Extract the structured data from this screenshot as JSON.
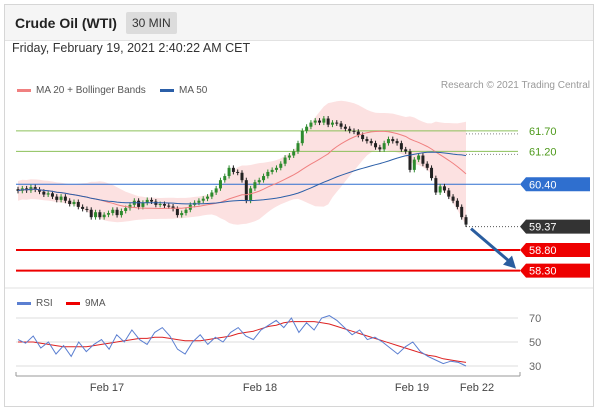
{
  "header": {
    "title": "Crude Oil (WTI)",
    "timeframe": "30 MIN"
  },
  "datetime": "Friday, February 19, 2021 2:40:22 AM CET",
  "legend": {
    "ma20_label": "MA 20 + Bollinger Bands",
    "ma50_label": "MA 50",
    "credit": "Research © 2021 Trading Central",
    "rsi_label": "RSI",
    "ma9_label": "9MA"
  },
  "colors": {
    "ma20": "#f08080",
    "bands": "#fbdada",
    "ma50": "#2b5fa8",
    "pivot": "#2f6fcf",
    "support": "#ee0000",
    "resistance": "#8cc05a",
    "resistance_text": "#4e9a1c",
    "arrow": "#2a5d9f",
    "last_price": "#333333",
    "rsi": "#5b7fd1"
  },
  "chart_data": [
    {
      "type": "candlestick",
      "title": "Crude Oil (WTI)",
      "ylim": [
        57.95,
        62.45
      ],
      "x_tick_labels": [
        "Feb 17",
        "Feb 18",
        "Feb 19",
        "Feb 22"
      ],
      "close": [
        60.24,
        60.3,
        60.25,
        60.33,
        60.27,
        60.22,
        60.15,
        60.18,
        60.1,
        60.02,
        60.1,
        60.0,
        59.92,
        59.97,
        59.85,
        59.8,
        59.78,
        59.6,
        59.72,
        59.6,
        59.66,
        59.7,
        59.78,
        59.65,
        59.75,
        59.82,
        59.9,
        60.0,
        59.85,
        59.95,
        60.02,
        59.98,
        59.9,
        59.92,
        59.88,
        59.86,
        59.8,
        59.65,
        59.7,
        59.78,
        59.9,
        59.95,
        60.0,
        60.05,
        60.1,
        60.2,
        60.3,
        60.5,
        60.6,
        60.8,
        60.7,
        60.68,
        60.5,
        60.0,
        60.3,
        60.45,
        60.5,
        60.6,
        60.7,
        60.75,
        60.8,
        60.9,
        61.05,
        61.1,
        61.2,
        61.4,
        61.7,
        61.8,
        61.9,
        61.95,
        61.9,
        62.0,
        61.85,
        61.9,
        61.88,
        61.8,
        61.75,
        61.7,
        61.68,
        61.6,
        61.5,
        61.45,
        61.4,
        61.3,
        61.25,
        61.4,
        61.5,
        61.45,
        61.4,
        61.25,
        61.2,
        60.75,
        61.0,
        61.1,
        60.9,
        60.8,
        60.55,
        60.2,
        60.35,
        60.25,
        60.1,
        60.0,
        59.85,
        59.6,
        59.42
      ],
      "series": [
        {
          "name": "MA 20",
          "close_ref": true
        },
        {
          "name": "MA 50",
          "close_ref": true
        }
      ],
      "levels": [
        {
          "label": "61.70",
          "value": 61.7,
          "kind": "resistance"
        },
        {
          "label": "61.20",
          "value": 61.2,
          "kind": "resistance"
        },
        {
          "label": "60.40",
          "value": 60.4,
          "kind": "pivot"
        },
        {
          "label": "59.37",
          "value": 59.37,
          "kind": "last"
        },
        {
          "label": "58.80",
          "value": 58.8,
          "kind": "support"
        },
        {
          "label": "58.30",
          "value": 58.3,
          "kind": "support"
        }
      ],
      "forecast_arrow": {
        "from": 59.37,
        "to": 58.3,
        "direction": "down"
      }
    },
    {
      "type": "line",
      "title": "RSI",
      "ylim": [
        25,
        75
      ],
      "y_tick_labels": [
        "70",
        "50",
        "30"
      ],
      "y_ticks": [
        70,
        50,
        30
      ],
      "series": [
        {
          "name": "RSI",
          "values": [
            52,
            49,
            55,
            45,
            50,
            40,
            47,
            38,
            50,
            42,
            48,
            52,
            44,
            56,
            50,
            60,
            52,
            48,
            58,
            62,
            55,
            44,
            40,
            50,
            56,
            48,
            54,
            50,
            58,
            62,
            55,
            52,
            60,
            64,
            68,
            62,
            70,
            58,
            66,
            60,
            70,
            72,
            68,
            62,
            56,
            60,
            52,
            54,
            50,
            45,
            40,
            46,
            50,
            42,
            38,
            35,
            32,
            34,
            33,
            30
          ]
        },
        {
          "name": "9MA",
          "values": [
            50,
            50,
            50,
            49,
            48,
            47,
            46,
            46,
            46,
            46,
            47,
            48,
            49,
            50,
            51,
            52,
            53,
            53,
            54,
            54,
            53,
            52,
            51,
            51,
            51,
            52,
            53,
            54,
            55,
            57,
            58,
            59,
            61,
            63,
            64,
            66,
            67,
            67,
            67,
            67,
            66,
            65,
            63,
            61,
            59,
            57,
            55,
            53,
            51,
            49,
            47,
            45,
            43,
            41,
            39,
            38,
            36,
            35,
            34,
            33
          ]
        }
      ]
    }
  ]
}
